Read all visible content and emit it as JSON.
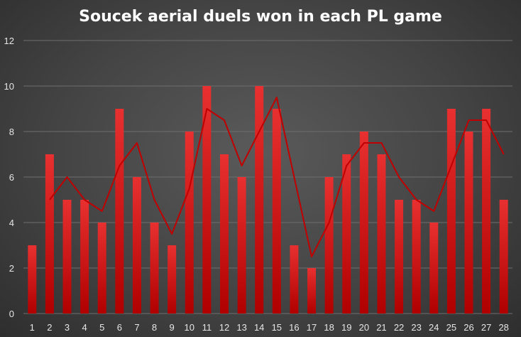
{
  "chart_data": {
    "type": "bar",
    "title": "Soucek aerial duels won in each PL game",
    "xlabel": "",
    "ylabel": "",
    "ylim": [
      0,
      12
    ],
    "yticks": [
      0,
      2,
      4,
      6,
      8,
      10,
      12
    ],
    "grid": true,
    "legend": "none",
    "categories": [
      "1",
      "2",
      "3",
      "4",
      "5",
      "6",
      "7",
      "8",
      "9",
      "10",
      "11",
      "12",
      "13",
      "14",
      "15",
      "16",
      "17",
      "18",
      "19",
      "20",
      "21",
      "22",
      "23",
      "24",
      "25",
      "26",
      "27",
      "28"
    ],
    "series": [
      {
        "type": "bar",
        "values": [
          3,
          7,
          5,
          5,
          4,
          9,
          6,
          4,
          3,
          8,
          10,
          7,
          6,
          10,
          9,
          3,
          2,
          6,
          7,
          8,
          7,
          5,
          5,
          4,
          9,
          8,
          9,
          5
        ],
        "color": "#e01818"
      },
      {
        "type": "line",
        "values": [
          null,
          5,
          6,
          5,
          4.5,
          6.5,
          7.5,
          5,
          3.5,
          5.5,
          9,
          8.5,
          6.5,
          8,
          9.5,
          6,
          2.5,
          4,
          6.5,
          7.5,
          7.5,
          6,
          5,
          4.5,
          6.5,
          8.5,
          8.5,
          7
        ],
        "color": "#c00000"
      }
    ]
  }
}
